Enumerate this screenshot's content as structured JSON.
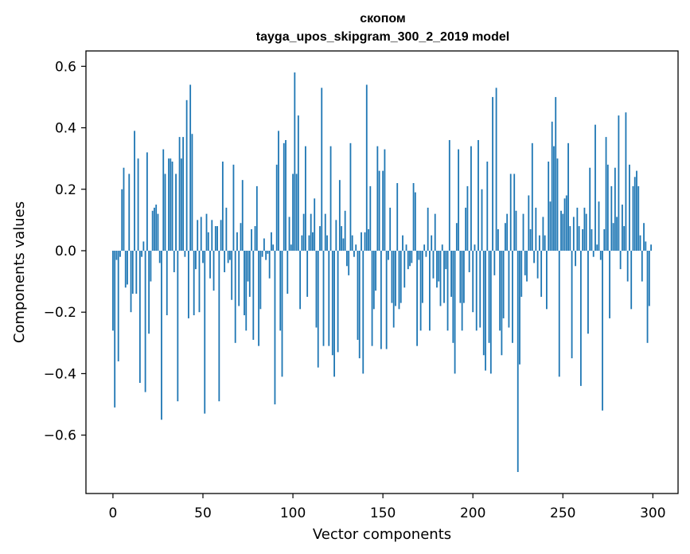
{
  "chart_data": {
    "type": "bar",
    "title": "скопом",
    "subtitle": "tayga_upos_skipgram_300_2_2019 model",
    "xlabel": "Vector components",
    "ylabel": "Components values",
    "xlim": [
      -15,
      314
    ],
    "ylim": [
      -0.79,
      0.65
    ],
    "xticks": [
      0,
      50,
      100,
      150,
      200,
      250,
      300
    ],
    "xtick_labels": [
      "0",
      "50",
      "100",
      "150",
      "200",
      "250",
      "300"
    ],
    "yticks": [
      -0.6,
      -0.4,
      -0.2,
      0.0,
      0.2,
      0.4,
      0.6
    ],
    "ytick_labels": [
      "−0.6",
      "−0.4",
      "−0.2",
      "0.0",
      "0.2",
      "0.4",
      "0.6"
    ],
    "bar_color": "#1f77b4",
    "values": [
      -0.26,
      -0.51,
      -0.03,
      -0.36,
      -0.02,
      0.2,
      0.27,
      -0.12,
      -0.11,
      0.25,
      -0.2,
      -0.14,
      0.39,
      -0.14,
      0.3,
      -0.43,
      -0.02,
      0.03,
      -0.46,
      0.32,
      -0.27,
      -0.1,
      0.13,
      0.14,
      0.15,
      0.12,
      -0.04,
      -0.55,
      0.33,
      0.25,
      -0.21,
      0.3,
      0.3,
      0.29,
      -0.07,
      0.25,
      -0.49,
      0.37,
      0.3,
      0.37,
      -0.02,
      0.49,
      -0.22,
      0.54,
      0.38,
      -0.21,
      -0.06,
      0.1,
      -0.2,
      0.11,
      -0.04,
      -0.53,
      0.12,
      0.06,
      -0.09,
      0.1,
      -0.13,
      0.08,
      0.08,
      -0.49,
      0.1,
      0.29,
      -0.07,
      0.14,
      -0.04,
      -0.03,
      -0.16,
      0.28,
      -0.3,
      0.06,
      -0.18,
      0.09,
      0.23,
      -0.21,
      -0.26,
      -0.1,
      -0.15,
      0.07,
      -0.29,
      0.08,
      0.21,
      -0.31,
      -0.19,
      -0.02,
      0.04,
      -0.03,
      -0.01,
      -0.09,
      0.06,
      0.02,
      -0.5,
      0.28,
      0.39,
      -0.26,
      -0.41,
      0.35,
      0.36,
      -0.14,
      0.11,
      0.02,
      0.25,
      0.58,
      0.25,
      0.44,
      -0.19,
      0.05,
      0.12,
      0.34,
      -0.15,
      0.05,
      0.12,
      0.06,
      0.17,
      -0.25,
      -0.38,
      0.08,
      0.53,
      -0.31,
      0.12,
      0.05,
      -0.31,
      0.34,
      -0.34,
      -0.41,
      0.1,
      -0.33,
      0.23,
      0.08,
      0.04,
      0.13,
      -0.05,
      -0.08,
      0.35,
      0.05,
      -0.02,
      0.02,
      -0.29,
      -0.35,
      0.06,
      -0.4,
      0.06,
      0.54,
      0.07,
      0.21,
      -0.31,
      -0.19,
      -0.13,
      0.34,
      0.26,
      -0.32,
      0.26,
      0.33,
      -0.32,
      -0.03,
      0.14,
      -0.17,
      -0.25,
      -0.18,
      0.22,
      -0.19,
      -0.17,
      0.05,
      -0.12,
      0.02,
      -0.06,
      -0.05,
      -0.04,
      0.22,
      0.19,
      -0.31,
      -0.03,
      -0.26,
      -0.17,
      0.02,
      -0.02,
      0.14,
      -0.26,
      0.05,
      -0.09,
      0.12,
      -0.12,
      -0.1,
      -0.18,
      0.02,
      -0.17,
      -0.06,
      -0.26,
      0.36,
      -0.15,
      -0.3,
      -0.4,
      0.09,
      0.33,
      -0.17,
      -0.26,
      -0.17,
      0.14,
      0.21,
      -0.07,
      0.34,
      -0.2,
      0.02,
      -0.26,
      0.36,
      -0.25,
      0.2,
      -0.34,
      -0.39,
      0.29,
      -0.3,
      -0.4,
      0.5,
      -0.08,
      0.53,
      0.07,
      -0.26,
      -0.34,
      -0.22,
      0.09,
      0.12,
      -0.25,
      0.25,
      -0.3,
      0.25,
      0.13,
      -0.72,
      -0.37,
      -0.15,
      0.12,
      -0.08,
      -0.1,
      0.18,
      0.07,
      0.35,
      -0.04,
      0.14,
      -0.09,
      0.05,
      -0.15,
      0.11,
      0.05,
      -0.19,
      0.29,
      0.16,
      0.42,
      0.34,
      0.5,
      0.3,
      -0.41,
      0.13,
      0.12,
      0.17,
      0.18,
      0.35,
      0.08,
      -0.35,
      0.11,
      -0.05,
      0.14,
      0.08,
      -0.44,
      0.07,
      0.14,
      0.12,
      -0.27,
      0.27,
      0.07,
      -0.02,
      0.41,
      0.02,
      0.16,
      -0.03,
      -0.52,
      0.07,
      0.37,
      0.28,
      -0.22,
      0.21,
      0.09,
      0.27,
      0.11,
      0.44,
      -0.06,
      0.15,
      0.08,
      0.45,
      -0.1,
      0.28,
      -0.19,
      0.21,
      0.24,
      0.26,
      0.21,
      0.05,
      -0.1,
      0.09,
      0.03,
      -0.3,
      -0.18,
      0.02
    ]
  }
}
